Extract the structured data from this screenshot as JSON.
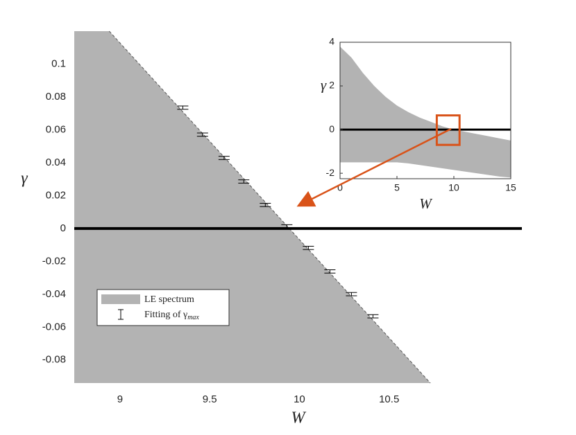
{
  "chart_data": [
    {
      "type": "area",
      "x_label": "W",
      "y_label": "γ",
      "xlim": [
        8.745,
        11.24
      ],
      "ylim": [
        -0.094,
        0.12
      ],
      "xticks": [
        9,
        9.5,
        10,
        10.5
      ],
      "yticks": [
        0.1,
        0.08,
        0.06,
        0.04,
        0.02,
        0,
        -0.02,
        -0.04,
        -0.06,
        -0.08
      ],
      "hline": 0,
      "series": [
        {
          "name": "LE spectrum",
          "color": "#b3b3b3",
          "x": [
            8.94,
            10.73
          ],
          "values": [
            0.12,
            -0.094
          ]
        },
        {
          "name": "Fitting of γ",
          "name_subscript": "max",
          "color": "#000000",
          "x": [
            9.35,
            9.46,
            9.58,
            9.69,
            9.81,
            9.93,
            10.05,
            10.17,
            10.29,
            10.41
          ],
          "values": [
            0.0735,
            0.0571,
            0.0429,
            0.0286,
            0.0143,
            0.0013,
            -0.0118,
            -0.0261,
            -0.0399,
            -0.0534
          ],
          "errors": [
            0.001,
            0.001,
            0.001,
            0.001,
            0.001,
            0.001,
            0.001,
            0.001,
            0.001,
            0.001
          ]
        }
      ]
    },
    {
      "type": "area",
      "x_label": "W",
      "y_label": "γ",
      "xlim": [
        0,
        15
      ],
      "ylim": [
        -2.25,
        4
      ],
      "xticks": [
        0,
        5,
        10,
        15
      ],
      "yticks": [
        4,
        2,
        0,
        -2
      ],
      "hline": 0,
      "series": [
        {
          "color": "#b3b3b3",
          "x": [
            0,
            1,
            2,
            3,
            4,
            5,
            6,
            7,
            8,
            9,
            10,
            11,
            12,
            13,
            14,
            15
          ],
          "values": [
            3.8,
            3.3,
            2.6,
            2.0,
            1.5,
            1.1,
            0.8,
            0.55,
            0.35,
            0.15,
            0,
            -0.1,
            -0.2,
            -0.3,
            -0.4,
            -0.5
          ]
        },
        {
          "color": "#b3b3b3",
          "x": [
            0,
            5,
            6,
            8,
            10,
            12,
            14,
            15
          ],
          "values": [
            -1.5,
            -1.5,
            -1.55,
            -1.7,
            -1.85,
            -2.0,
            -2.15,
            -2.2
          ]
        }
      ],
      "zoom_box": {
        "color": "#d95319",
        "x": [
          8.5,
          10.5
        ],
        "y": [
          -0.7,
          0.65
        ]
      }
    }
  ]
}
